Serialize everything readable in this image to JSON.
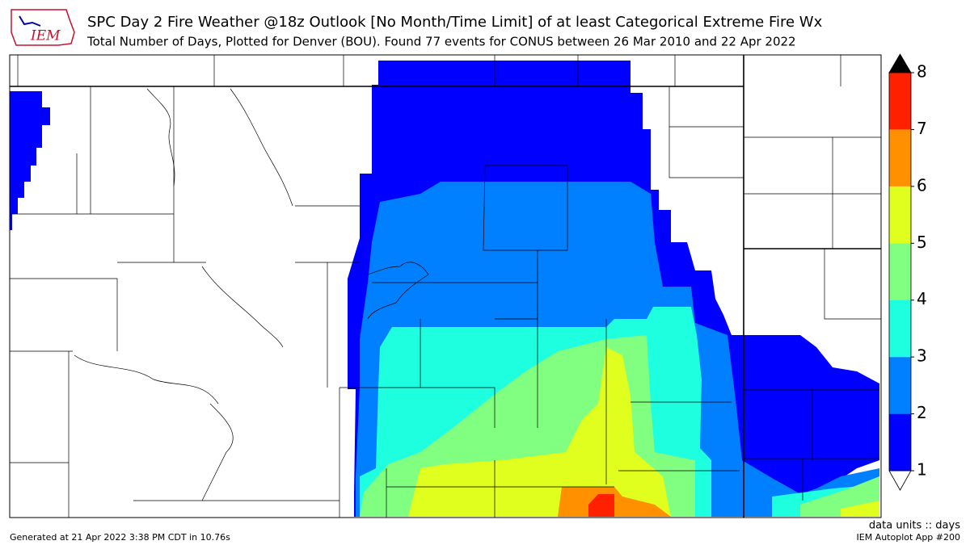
{
  "header": {
    "title": "SPC Day 2 Fire Weather @18z Outlook [No Month/Time Limit] of at least Categorical Extreme Fire Wx",
    "subtitle": "Total Number of Days, Plotted for Denver (BOU). Found 77 events for CONUS between 26 Mar 2010 and 22 Apr 2022"
  },
  "logo": {
    "text": "IEM"
  },
  "colorbar": {
    "levels": [
      1,
      2,
      3,
      4,
      5,
      6,
      7,
      8
    ],
    "colors": [
      "#0000ff",
      "#0080ff",
      "#1effe0",
      "#80ff80",
      "#e0ff1e",
      "#ff9000",
      "#ff2000"
    ],
    "over_color": "#000000",
    "under_color": "#ffffff"
  },
  "footer": {
    "units": "data units :: days",
    "app": "IEM Autoplot App #200",
    "generated": "Generated at 21 Apr 2022 3:38 PM CDT in 10.76s"
  }
}
